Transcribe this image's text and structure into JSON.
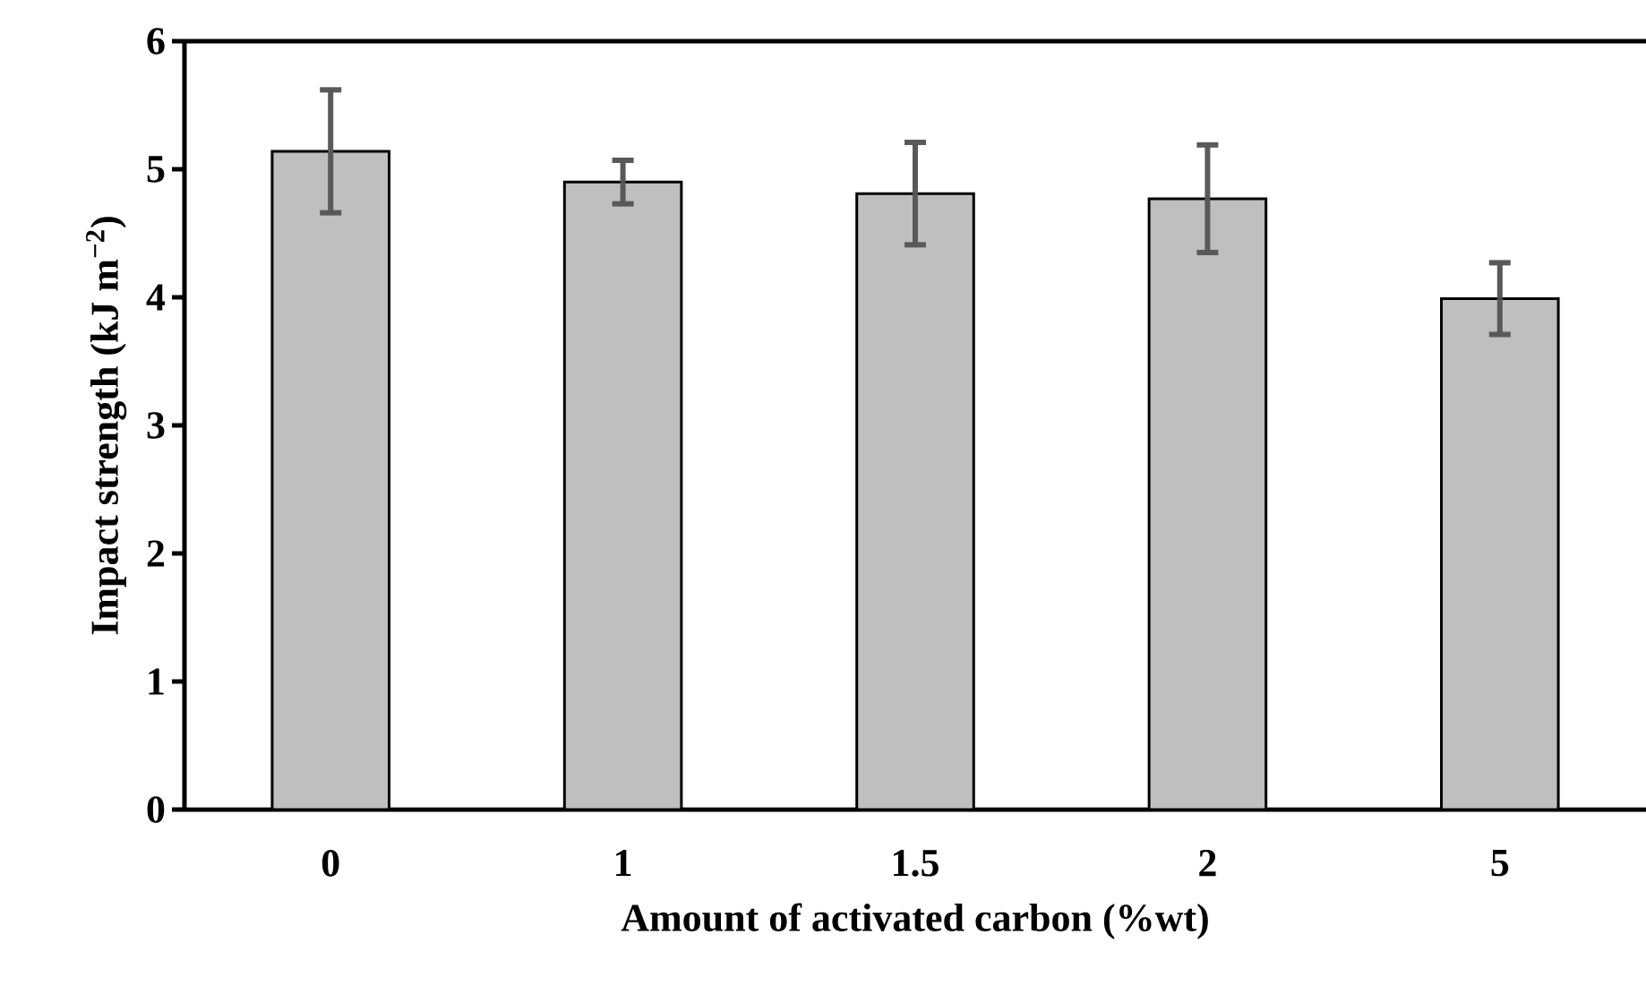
{
  "chart_data": {
    "type": "bar",
    "xlabel": "Amount of activated carbon (%wt)",
    "ylabel": "Impact strength (kJ m$^{−2}$)",
    "categories": [
      "0",
      "1",
      "1.5",
      "2",
      "5"
    ],
    "values": [
      5.14,
      4.9,
      4.81,
      4.77,
      3.99
    ],
    "errors": [
      0.48,
      0.17,
      0.4,
      0.42,
      0.28
    ],
    "color": "#bfbfbf",
    "ylim": [
      0,
      6
    ],
    "yticks": [
      0,
      1,
      2,
      3,
      4,
      5,
      6
    ],
    "grid": false
  }
}
